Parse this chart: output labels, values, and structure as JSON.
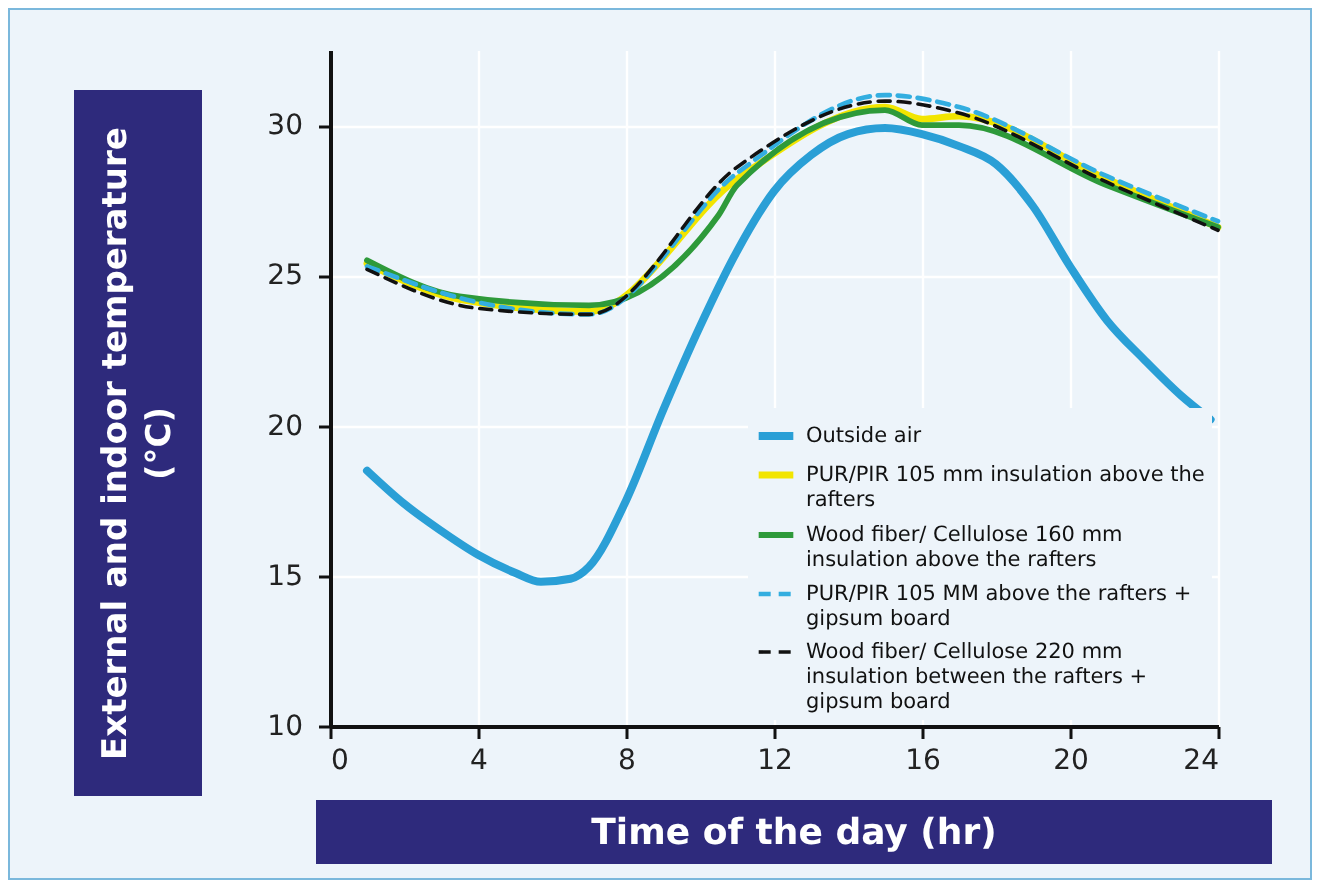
{
  "chart_data": {
    "type": "line",
    "xlabel": "Time of the day (hr)",
    "ylabel": "External and indoor temperature (°C)",
    "xlim": [
      0,
      24
    ],
    "xticks": [
      0,
      4,
      8,
      12,
      16,
      20,
      24
    ],
    "ylim": [
      10,
      32.5
    ],
    "yticks": [
      10,
      15,
      20,
      25,
      30
    ],
    "grid": true,
    "legend": "bottom right",
    "series": [
      {
        "name": "Outside air",
        "color": "#2a9fd6",
        "line_style": "solid",
        "x": [
          1,
          2,
          3,
          4,
          5,
          5.7,
          6.5,
          7,
          8,
          9,
          10,
          11,
          12,
          13,
          14,
          15,
          16,
          17,
          18,
          19,
          20,
          21,
          22,
          23,
          23.8
        ],
        "values": [
          18.5,
          17.4,
          16.5,
          15.7,
          15.1,
          14.8,
          14.9,
          15.3,
          17.5,
          20.5,
          23.3,
          25.8,
          27.8,
          29.0,
          29.7,
          29.9,
          29.7,
          29.3,
          28.7,
          27.3,
          25.3,
          23.5,
          22.2,
          21.0,
          20.2
        ]
      },
      {
        "name": "PUR/PIR 105 mm insulation above the rafters",
        "color": "#f2e500",
        "line_style": "solid",
        "x": [
          1,
          3.5,
          7,
          11,
          15,
          16,
          17,
          21,
          24
        ],
        "values": [
          25.4,
          24.2,
          23.8,
          28.2,
          30.6,
          30.2,
          30.3,
          28.2,
          26.6
        ]
      },
      {
        "name": "Wood fiber/ Cellulose 160 mm insulation above the rafters",
        "color": "#2e9a3a",
        "line_style": "solid",
        "x": [
          1,
          3.5,
          7,
          10.5,
          11,
          15,
          16,
          17,
          21,
          24
        ],
        "values": [
          25.5,
          24.3,
          24.0,
          27.0,
          28.0,
          30.5,
          30.0,
          30.0,
          28.0,
          26.6
        ]
      },
      {
        "name": "PUR/PIR 105 MM above the rafters + gipsum board",
        "color": "#33aee0",
        "line_style": "dashed",
        "x": [
          1,
          4,
          7,
          11,
          15,
          17,
          21,
          24
        ],
        "values": [
          25.3,
          24.1,
          23.7,
          28.4,
          31.0,
          30.6,
          28.3,
          26.8
        ]
      },
      {
        "name": "Wood fiber/ Cellulose 220 mm insulation between the rafters + gipsum board",
        "color": "#111111",
        "line_style": "dashed",
        "x": [
          1,
          4,
          7,
          11,
          15,
          17,
          21,
          24
        ],
        "values": [
          25.2,
          23.9,
          23.7,
          28.6,
          30.8,
          30.4,
          28.1,
          26.5
        ]
      }
    ]
  }
}
